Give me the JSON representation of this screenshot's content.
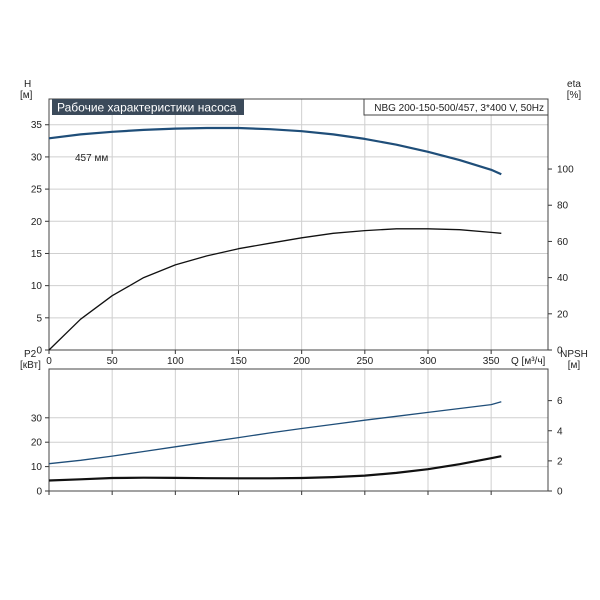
{
  "chart_data": [
    {
      "type": "line",
      "title": "Рабочие характеристики насоса",
      "model": "NBG 200-150-500/457, 3*400 V, 50Hz",
      "x_unit_label": "Q [м³/ч]",
      "xlim": [
        0,
        395
      ],
      "x_ticks": [
        0,
        50,
        100,
        150,
        200,
        250,
        300,
        350
      ],
      "left_axis": {
        "name": "H",
        "unit": "[м]",
        "ylim": [
          0,
          39
        ],
        "ticks": [
          0,
          5,
          10,
          15,
          20,
          25,
          30,
          35
        ]
      },
      "right_axis": {
        "name": "eta",
        "unit": "[%]",
        "ylim": [
          0,
          138.7
        ],
        "ticks": [
          0,
          20,
          40,
          60,
          80,
          100
        ]
      },
      "grid": true,
      "series": [
        {
          "name": "457 мм",
          "axis": "left",
          "color": "#1f4e79",
          "x": [
            0,
            25,
            50,
            75,
            100,
            125,
            150,
            175,
            200,
            225,
            250,
            275,
            300,
            325,
            350,
            358
          ],
          "y": [
            32.9,
            33.5,
            33.9,
            34.2,
            34.4,
            34.5,
            34.5,
            34.3,
            34.0,
            33.5,
            32.8,
            31.9,
            30.8,
            29.5,
            28.0,
            27.3
          ]
        },
        {
          "axis": "right",
          "color": "#111111",
          "x": [
            0,
            25,
            50,
            75,
            100,
            125,
            150,
            175,
            200,
            225,
            250,
            275,
            300,
            325,
            350,
            358
          ],
          "y": [
            0,
            17,
            30,
            40,
            47,
            52,
            56,
            59,
            62,
            64.5,
            66,
            67,
            67,
            66.5,
            65,
            64.5
          ]
        }
      ]
    },
    {
      "type": "line",
      "xlim": [
        0,
        395
      ],
      "x_ticks": [
        0,
        50,
        100,
        150,
        200,
        250,
        300,
        350
      ],
      "left_axis": {
        "name": "P2",
        "unit": "[кВт]",
        "ylim": [
          0,
          50
        ],
        "ticks": [
          0,
          10,
          20,
          30
        ]
      },
      "right_axis": {
        "name": "NPSH",
        "unit": "[м]",
        "ylim": [
          0,
          8.1
        ],
        "ticks": [
          0,
          2,
          4,
          6
        ]
      },
      "grid": true,
      "series": [
        {
          "axis": "left",
          "color": "#1f4e79",
          "x": [
            0,
            25,
            50,
            75,
            100,
            125,
            150,
            175,
            200,
            225,
            250,
            275,
            300,
            325,
            350,
            358
          ],
          "y": [
            11.2,
            12.6,
            14.3,
            16.2,
            18.1,
            20.0,
            21.9,
            23.8,
            25.6,
            27.3,
            29.0,
            30.6,
            32.2,
            33.8,
            35.4,
            36.6
          ]
        },
        {
          "axis": "right",
          "color": "#111111",
          "x": [
            0,
            25,
            50,
            75,
            100,
            125,
            150,
            175,
            200,
            225,
            250,
            275,
            300,
            325,
            350,
            358
          ],
          "y": [
            0.7,
            0.78,
            0.86,
            0.88,
            0.87,
            0.85,
            0.84,
            0.84,
            0.86,
            0.92,
            1.02,
            1.2,
            1.45,
            1.78,
            2.18,
            2.31
          ]
        }
      ]
    }
  ]
}
